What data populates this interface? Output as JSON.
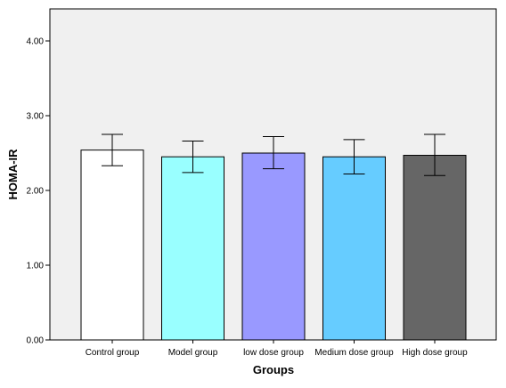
{
  "chart_data": {
    "type": "bar",
    "title": "",
    "xlabel": "Groups",
    "ylabel": "HOMA-IR",
    "ylim": [
      0,
      4.3
    ],
    "yticks": [
      0,
      1,
      2,
      3,
      4
    ],
    "ytick_labels": [
      "0.00",
      "1.00",
      "2.00",
      "3.00",
      "4.00"
    ],
    "categories": [
      "Control group",
      "Model group",
      "low dose group",
      "Medium dose group",
      "High dose group"
    ],
    "values": [
      2.54,
      2.45,
      2.5,
      2.45,
      2.47
    ],
    "error_low": [
      2.33,
      2.24,
      2.29,
      2.22,
      2.2
    ],
    "error_high": [
      2.75,
      2.66,
      2.72,
      2.68,
      2.75
    ],
    "colors": [
      "#ffffff",
      "#99ffff",
      "#9999ff",
      "#66ccff",
      "#666666"
    ],
    "plot_background": "#f0f0f0",
    "grid": false,
    "legend": "none"
  }
}
